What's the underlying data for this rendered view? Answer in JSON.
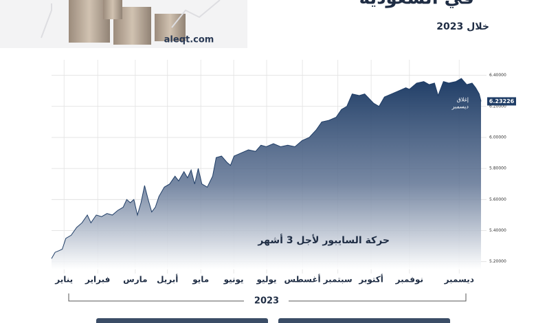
{
  "chart_data": {
    "type": "area",
    "title": "في السعودية",
    "subtitle": "خلال 2023",
    "source": "aleqt.com",
    "unit_symbol": "%",
    "series_label": "حركة السايبور لأجل 3 أشهر",
    "close_label": [
      "إغلاق",
      "ديسمبر"
    ],
    "x_group_label": "2023",
    "color": "#1f3d66",
    "grid": true,
    "xlim": [
      0,
      12
    ],
    "ylim": [
      5.15,
      6.5
    ],
    "xticks": [
      {
        "value": 0.35,
        "label": "يناير"
      },
      {
        "value": 1.29,
        "label": "فبراير"
      },
      {
        "value": 2.34,
        "label": "مارس"
      },
      {
        "value": 3.24,
        "label": "أبريل"
      },
      {
        "value": 4.17,
        "label": "مايو"
      },
      {
        "value": 5.09,
        "label": "يونيو"
      },
      {
        "value": 6.01,
        "label": "يوليو"
      },
      {
        "value": 7.01,
        "label": "أغسطس"
      },
      {
        "value": 8.0,
        "label": "سبتمبر"
      },
      {
        "value": 8.93,
        "label": "أكتوبر"
      },
      {
        "value": 10.0,
        "label": "نوفمبر"
      },
      {
        "value": 11.39,
        "label": "ديسمبر"
      }
    ],
    "yticks": [
      {
        "value": 5.2,
        "label": "5.20000"
      },
      {
        "value": 5.4,
        "label": "5.40000"
      },
      {
        "value": 5.6,
        "label": "5.60000"
      },
      {
        "value": 5.8,
        "label": "5.80000"
      },
      {
        "value": 6.0,
        "label": "6.00000"
      },
      {
        "value": 6.2,
        "label": "6.20000"
      },
      {
        "value": 6.4,
        "label": "6.40000"
      }
    ],
    "x": [
      0.0,
      0.1,
      0.2,
      0.3,
      0.4,
      0.55,
      0.7,
      0.85,
      1.0,
      1.1,
      1.25,
      1.4,
      1.55,
      1.7,
      1.85,
      2.0,
      2.1,
      2.2,
      2.3,
      2.4,
      2.5,
      2.6,
      2.7,
      2.8,
      2.9,
      3.0,
      3.15,
      3.3,
      3.45,
      3.55,
      3.7,
      3.8,
      3.9,
      4.0,
      4.1,
      4.2,
      4.35,
      4.5,
      4.6,
      4.75,
      4.9,
      5.0,
      5.1,
      5.3,
      5.5,
      5.7,
      5.85,
      6.0,
      6.2,
      6.4,
      6.6,
      6.8,
      7.0,
      7.2,
      7.4,
      7.55,
      7.75,
      7.95,
      8.1,
      8.25,
      8.4,
      8.6,
      8.75,
      9.0,
      9.15,
      9.3,
      9.5,
      9.7,
      9.9,
      10.0,
      10.2,
      10.4,
      10.55,
      10.7,
      10.8,
      10.95,
      11.1,
      11.3,
      11.45,
      11.6,
      11.75,
      11.85,
      11.95,
      12.0
    ],
    "values": [
      5.22,
      5.26,
      5.27,
      5.28,
      5.35,
      5.37,
      5.42,
      5.45,
      5.5,
      5.45,
      5.5,
      5.49,
      5.51,
      5.5,
      5.53,
      5.55,
      5.6,
      5.58,
      5.6,
      5.5,
      5.58,
      5.69,
      5.6,
      5.52,
      5.55,
      5.62,
      5.68,
      5.7,
      5.75,
      5.72,
      5.78,
      5.74,
      5.79,
      5.7,
      5.8,
      5.7,
      5.68,
      5.75,
      5.87,
      5.88,
      5.84,
      5.82,
      5.88,
      5.9,
      5.92,
      5.91,
      5.95,
      5.94,
      5.96,
      5.94,
      5.95,
      5.94,
      5.98,
      6.0,
      6.05,
      6.1,
      6.11,
      6.13,
      6.18,
      6.2,
      6.28,
      6.27,
      6.28,
      6.22,
      6.2,
      6.26,
      6.28,
      6.3,
      6.32,
      6.31,
      6.35,
      6.36,
      6.34,
      6.35,
      6.27,
      6.36,
      6.35,
      6.36,
      6.38,
      6.34,
      6.35,
      6.32,
      6.28,
      6.23226
    ]
  }
}
